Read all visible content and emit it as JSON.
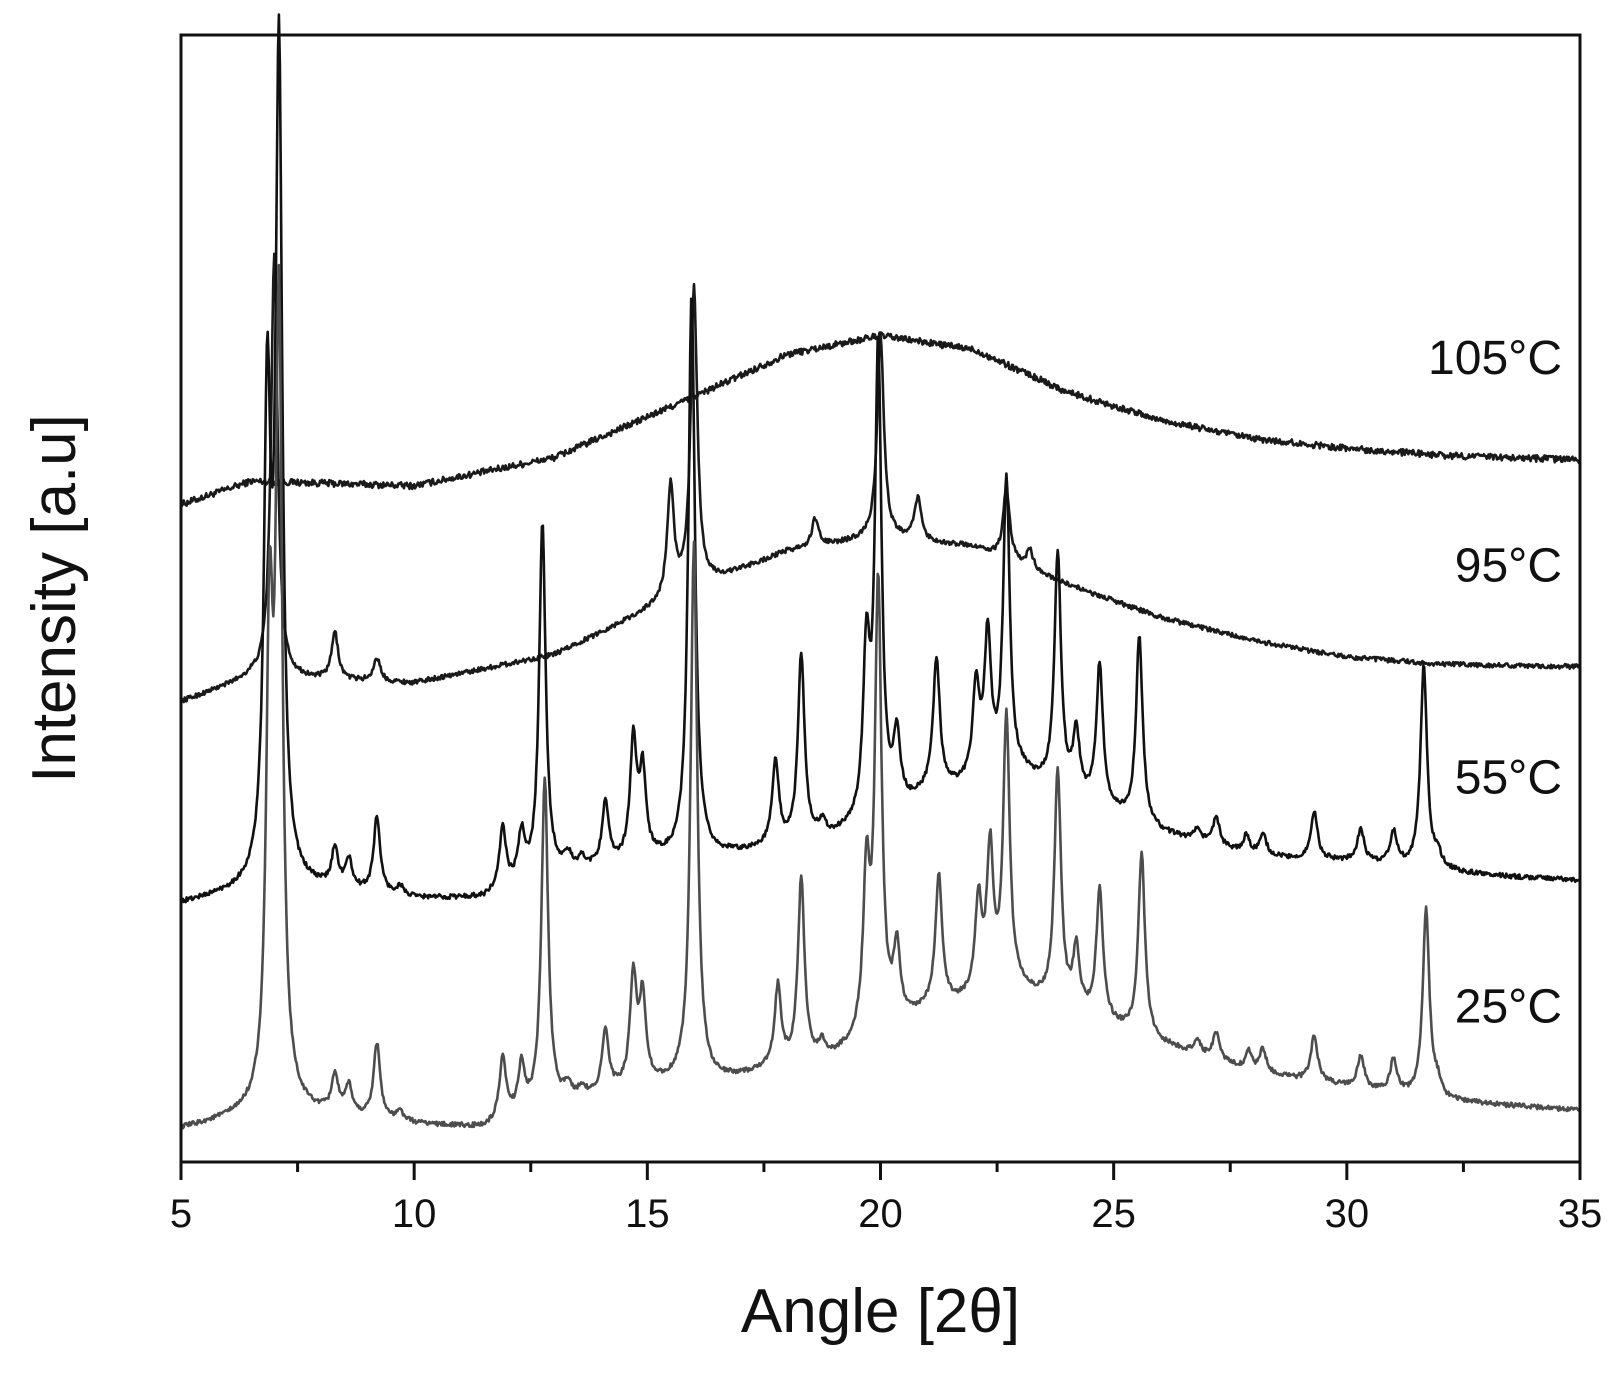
{
  "chart_data": {
    "type": "line",
    "xlabel": "Angle [2θ]",
    "ylabel": "Intensity [a.u]",
    "xlim": [
      5,
      35
    ],
    "ylim": [
      0,
      24
    ],
    "x_ticks": [
      5,
      10,
      15,
      20,
      25,
      30,
      35
    ],
    "x_minor_step": 2.5,
    "y_ticks_shown": false,
    "grid": false,
    "legend": "none",
    "series": [
      {
        "name": "105°C",
        "color": "#1a1a1a",
        "baseline": [
          [
            5,
            14.0
          ],
          [
            6.5,
            14.5
          ],
          [
            10,
            14.4
          ],
          [
            13,
            15.0
          ],
          [
            16,
            16.3
          ],
          [
            18,
            17.2
          ],
          [
            20,
            17.6
          ],
          [
            22,
            17.3
          ],
          [
            24,
            16.4
          ],
          [
            26,
            15.8
          ],
          [
            28,
            15.4
          ],
          [
            30,
            15.2
          ],
          [
            32,
            15.05
          ],
          [
            35,
            14.95
          ]
        ],
        "peaks": []
      },
      {
        "name": "95°C",
        "color": "#1a1a1a",
        "baseline": [
          [
            5,
            9.8
          ],
          [
            6.5,
            10.3
          ],
          [
            10,
            10.2
          ],
          [
            13,
            10.8
          ],
          [
            16,
            12.2
          ],
          [
            18,
            13.0
          ],
          [
            20,
            13.3
          ],
          [
            22,
            13.1
          ],
          [
            24,
            12.3
          ],
          [
            26,
            11.6
          ],
          [
            28,
            11.1
          ],
          [
            30,
            10.75
          ],
          [
            32,
            10.6
          ],
          [
            35,
            10.55
          ]
        ],
        "peaks": [
          [
            7.0,
            9.0
          ],
          [
            8.3,
            1.0
          ],
          [
            9.2,
            0.5
          ],
          [
            15.5,
            2.4
          ],
          [
            16.0,
            6.4
          ],
          [
            18.6,
            0.6
          ],
          [
            20.0,
            4.3
          ],
          [
            20.8,
            0.9
          ],
          [
            22.7,
            1.5
          ],
          [
            23.2,
            0.4
          ]
        ]
      },
      {
        "name": "55°C",
        "color": "#111111",
        "baseline": [
          [
            5,
            5.5
          ],
          [
            7,
            5.9
          ],
          [
            10,
            5.6
          ],
          [
            11.5,
            5.6
          ],
          [
            13,
            6.1
          ],
          [
            15,
            6.4
          ],
          [
            16.5,
            6.5
          ],
          [
            18,
            6.7
          ],
          [
            19,
            6.9
          ],
          [
            20,
            7.2
          ],
          [
            21,
            7.8
          ],
          [
            23,
            8.2
          ],
          [
            24,
            7.8
          ],
          [
            26,
            7.0
          ],
          [
            28,
            6.5
          ],
          [
            30,
            6.4
          ],
          [
            32,
            6.2
          ],
          [
            33,
            6.1
          ],
          [
            35,
            6.0
          ]
        ],
        "peaks": [
          [
            6.85,
            10.0
          ],
          [
            7.1,
            17.5
          ],
          [
            8.3,
            0.8
          ],
          [
            8.6,
            0.6
          ],
          [
            9.2,
            1.6
          ],
          [
            9.7,
            0.2
          ],
          [
            11.9,
            1.3
          ],
          [
            12.3,
            1.0
          ],
          [
            12.75,
            7.5
          ],
          [
            13.3,
            0.3
          ],
          [
            13.6,
            0.2
          ],
          [
            14.1,
            1.3
          ],
          [
            14.7,
            2.5
          ],
          [
            14.9,
            1.8
          ],
          [
            15.95,
            12.0
          ],
          [
            17.75,
            1.8
          ],
          [
            18.3,
            4.0
          ],
          [
            18.75,
            0.3
          ],
          [
            19.7,
            3.5
          ],
          [
            19.95,
            10.0
          ],
          [
            20.35,
            1.5
          ],
          [
            21.2,
            2.8
          ],
          [
            22.05,
            2.0
          ],
          [
            22.3,
            3.0
          ],
          [
            22.7,
            6.3
          ],
          [
            23.8,
            5.0
          ],
          [
            24.2,
            1.3
          ],
          [
            24.7,
            3.0
          ],
          [
            25.55,
            4.0
          ],
          [
            26.8,
            0.3
          ],
          [
            27.2,
            0.6
          ],
          [
            27.85,
            0.4
          ],
          [
            28.2,
            0.5
          ],
          [
            29.3,
            1.0
          ],
          [
            30.3,
            0.7
          ],
          [
            31.0,
            0.7
          ],
          [
            31.65,
            4.3
          ],
          [
            31.95,
            0.3
          ]
        ]
      },
      {
        "name": "25°C",
        "color": "#4d4d4d",
        "baseline": [
          [
            5,
            0.7
          ],
          [
            7,
            1.1
          ],
          [
            10,
            0.8
          ],
          [
            11.5,
            0.7
          ],
          [
            13,
            1.2
          ],
          [
            15,
            1.6
          ],
          [
            16.5,
            1.7
          ],
          [
            18,
            2.0
          ],
          [
            19,
            2.2
          ],
          [
            20,
            2.7
          ],
          [
            21,
            3.2
          ],
          [
            23,
            3.6
          ],
          [
            24,
            3.2
          ],
          [
            26,
            2.5
          ],
          [
            28,
            1.9
          ],
          [
            30,
            1.6
          ],
          [
            32,
            1.3
          ],
          [
            35,
            1.1
          ]
        ],
        "peaks": [
          [
            6.9,
            9.5
          ],
          [
            7.1,
            16.5
          ],
          [
            8.3,
            0.8
          ],
          [
            8.6,
            0.6
          ],
          [
            9.2,
            1.6
          ],
          [
            9.7,
            0.2
          ],
          [
            11.9,
            1.3
          ],
          [
            12.3,
            1.0
          ],
          [
            12.8,
            7.0
          ],
          [
            13.3,
            0.3
          ],
          [
            13.6,
            0.2
          ],
          [
            14.1,
            1.3
          ],
          [
            14.7,
            2.3
          ],
          [
            14.9,
            1.8
          ],
          [
            16.0,
            11.5
          ],
          [
            17.8,
            1.7
          ],
          [
            18.3,
            3.9
          ],
          [
            18.75,
            0.3
          ],
          [
            19.7,
            3.3
          ],
          [
            19.95,
            9.5
          ],
          [
            20.35,
            1.5
          ],
          [
            21.25,
            2.8
          ],
          [
            22.1,
            2.0
          ],
          [
            22.35,
            3.0
          ],
          [
            22.7,
            5.8
          ],
          [
            23.8,
            5.0
          ],
          [
            24.2,
            1.3
          ],
          [
            24.7,
            2.8
          ],
          [
            25.6,
            3.9
          ],
          [
            26.8,
            0.3
          ],
          [
            27.2,
            0.6
          ],
          [
            27.9,
            0.4
          ],
          [
            28.2,
            0.5
          ],
          [
            29.3,
            1.0
          ],
          [
            30.3,
            0.7
          ],
          [
            31.0,
            0.7
          ],
          [
            31.7,
            4.0
          ],
          [
            31.95,
            0.3
          ]
        ]
      }
    ]
  }
}
